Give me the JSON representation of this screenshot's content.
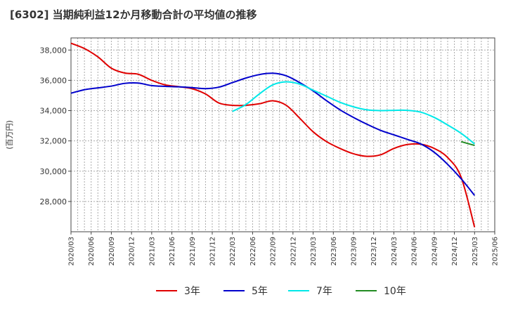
{
  "chart_data": {
    "type": "line",
    "title": "[6302]  当期純利益12か月移動合計の平均値の推移",
    "ylabel": "(百万円)",
    "xlabel": "",
    "ylim": [
      26000,
      38800
    ],
    "yticks": [
      28000,
      30000,
      32000,
      34000,
      36000,
      38000
    ],
    "ytick_labels": [
      "28,000",
      "30,000",
      "32,000",
      "34,000",
      "36,000",
      "38,000"
    ],
    "xlim": [
      "2020-03",
      "2025-06"
    ],
    "xtick_labels": [
      "2020/03",
      "2020/06",
      "2020/09",
      "2020/12",
      "2021/03",
      "2021/06",
      "2021/09",
      "2021/12",
      "2022/03",
      "2022/06",
      "2022/09",
      "2022/12",
      "2023/03",
      "2023/06",
      "2023/09",
      "2023/12",
      "2024/03",
      "2024/06",
      "2024/09",
      "2024/12",
      "2025/03",
      "2025/06"
    ],
    "grid": true,
    "legend_position": "bottom",
    "series": [
      {
        "name": "3年",
        "color": "#e00000",
        "x": [
          "2020-03",
          "2020-05",
          "2020-07",
          "2020-09",
          "2020-11",
          "2021-01",
          "2021-03",
          "2021-05",
          "2021-07",
          "2021-09",
          "2021-11",
          "2022-01",
          "2022-03",
          "2022-05",
          "2022-07",
          "2022-09",
          "2022-11",
          "2023-01",
          "2023-03",
          "2023-05",
          "2023-07",
          "2023-09",
          "2023-11",
          "2024-01",
          "2024-03",
          "2024-05",
          "2024-07",
          "2024-09",
          "2024-11",
          "2025-01",
          "2025-03"
        ],
        "y": [
          38450,
          38100,
          37550,
          36800,
          36480,
          36400,
          36000,
          35700,
          35580,
          35450,
          35100,
          34500,
          34350,
          34350,
          34450,
          34650,
          34350,
          33500,
          32600,
          31950,
          31500,
          31150,
          30980,
          31080,
          31500,
          31760,
          31780,
          31500,
          30900,
          29600,
          26300
        ]
      },
      {
        "name": "5年",
        "color": "#0000cc",
        "x": [
          "2020-03",
          "2020-05",
          "2020-07",
          "2020-09",
          "2020-11",
          "2021-01",
          "2021-03",
          "2021-05",
          "2021-07",
          "2021-09",
          "2021-11",
          "2022-01",
          "2022-03",
          "2022-05",
          "2022-07",
          "2022-09",
          "2022-11",
          "2023-01",
          "2023-03",
          "2023-05",
          "2023-07",
          "2023-09",
          "2023-11",
          "2024-01",
          "2024-03",
          "2024-05",
          "2024-07",
          "2024-09",
          "2024-11",
          "2025-01",
          "2025-03"
        ],
        "y": [
          35150,
          35380,
          35500,
          35620,
          35800,
          35820,
          35650,
          35600,
          35570,
          35520,
          35450,
          35550,
          35850,
          36150,
          36380,
          36470,
          36300,
          35850,
          35300,
          34650,
          34050,
          33550,
          33100,
          32700,
          32400,
          32100,
          31800,
          31250,
          30450,
          29500,
          28400
        ]
      },
      {
        "name": "7年",
        "color": "#00e8e8",
        "x": [
          "2022-03",
          "2022-05",
          "2022-07",
          "2022-09",
          "2022-11",
          "2023-01",
          "2023-03",
          "2023-05",
          "2023-07",
          "2023-09",
          "2023-11",
          "2024-01",
          "2024-03",
          "2024-05",
          "2024-07",
          "2024-09",
          "2024-11",
          "2025-01",
          "2025-03"
        ],
        "y": [
          33950,
          34400,
          35100,
          35700,
          35900,
          35750,
          35350,
          34950,
          34550,
          34250,
          34050,
          34000,
          34020,
          34020,
          33900,
          33550,
          33050,
          32500,
          31800
        ]
      },
      {
        "name": "10年",
        "color": "#228b22",
        "x": [
          "2025-01",
          "2025-03"
        ],
        "y": [
          31950,
          31700
        ]
      }
    ]
  }
}
